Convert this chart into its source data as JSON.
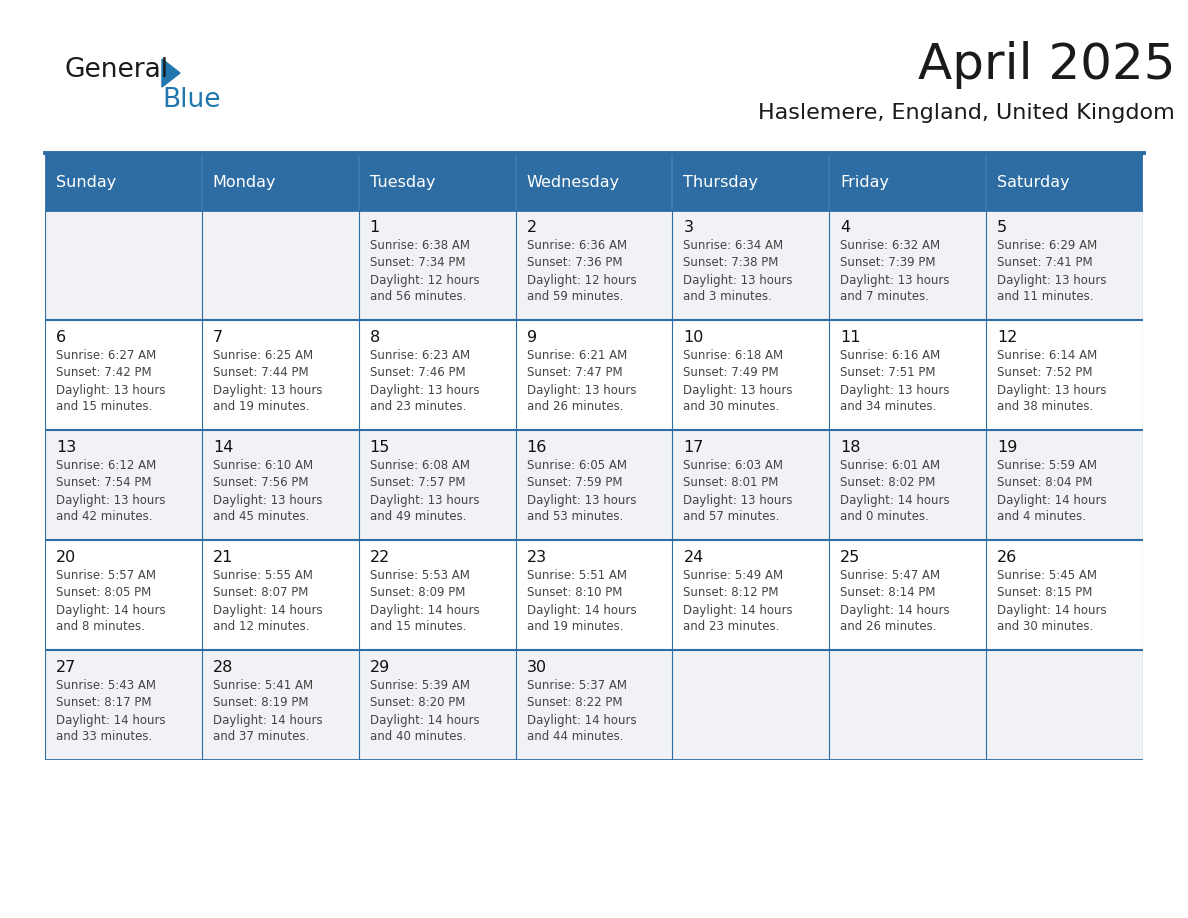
{
  "title": "April 2025",
  "subtitle": "Haslemere, England, United Kingdom",
  "header_bg": "#2e6da4",
  "header_text": "#ffffff",
  "row_bg_odd": "#f0f2f5",
  "row_bg_even": "#ffffff",
  "day_headers": [
    "Sunday",
    "Monday",
    "Tuesday",
    "Wednesday",
    "Thursday",
    "Friday",
    "Saturday"
  ],
  "title_color": "#1a1a1a",
  "subtitle_color": "#1a1a1a",
  "cell_text_color": "#444444",
  "day_num_color": "#111111",
  "line_color": "#2e6da4",
  "calendar": [
    [
      {
        "day": "",
        "sunrise": "",
        "sunset": "",
        "daylight": ""
      },
      {
        "day": "",
        "sunrise": "",
        "sunset": "",
        "daylight": ""
      },
      {
        "day": "1",
        "sunrise": "6:38 AM",
        "sunset": "7:34 PM",
        "daylight": "12 hours\nand 56 minutes."
      },
      {
        "day": "2",
        "sunrise": "6:36 AM",
        "sunset": "7:36 PM",
        "daylight": "12 hours\nand 59 minutes."
      },
      {
        "day": "3",
        "sunrise": "6:34 AM",
        "sunset": "7:38 PM",
        "daylight": "13 hours\nand 3 minutes."
      },
      {
        "day": "4",
        "sunrise": "6:32 AM",
        "sunset": "7:39 PM",
        "daylight": "13 hours\nand 7 minutes."
      },
      {
        "day": "5",
        "sunrise": "6:29 AM",
        "sunset": "7:41 PM",
        "daylight": "13 hours\nand 11 minutes."
      }
    ],
    [
      {
        "day": "6",
        "sunrise": "6:27 AM",
        "sunset": "7:42 PM",
        "daylight": "13 hours\nand 15 minutes."
      },
      {
        "day": "7",
        "sunrise": "6:25 AM",
        "sunset": "7:44 PM",
        "daylight": "13 hours\nand 19 minutes."
      },
      {
        "day": "8",
        "sunrise": "6:23 AM",
        "sunset": "7:46 PM",
        "daylight": "13 hours\nand 23 minutes."
      },
      {
        "day": "9",
        "sunrise": "6:21 AM",
        "sunset": "7:47 PM",
        "daylight": "13 hours\nand 26 minutes."
      },
      {
        "day": "10",
        "sunrise": "6:18 AM",
        "sunset": "7:49 PM",
        "daylight": "13 hours\nand 30 minutes."
      },
      {
        "day": "11",
        "sunrise": "6:16 AM",
        "sunset": "7:51 PM",
        "daylight": "13 hours\nand 34 minutes."
      },
      {
        "day": "12",
        "sunrise": "6:14 AM",
        "sunset": "7:52 PM",
        "daylight": "13 hours\nand 38 minutes."
      }
    ],
    [
      {
        "day": "13",
        "sunrise": "6:12 AM",
        "sunset": "7:54 PM",
        "daylight": "13 hours\nand 42 minutes."
      },
      {
        "day": "14",
        "sunrise": "6:10 AM",
        "sunset": "7:56 PM",
        "daylight": "13 hours\nand 45 minutes."
      },
      {
        "day": "15",
        "sunrise": "6:08 AM",
        "sunset": "7:57 PM",
        "daylight": "13 hours\nand 49 minutes."
      },
      {
        "day": "16",
        "sunrise": "6:05 AM",
        "sunset": "7:59 PM",
        "daylight": "13 hours\nand 53 minutes."
      },
      {
        "day": "17",
        "sunrise": "6:03 AM",
        "sunset": "8:01 PM",
        "daylight": "13 hours\nand 57 minutes."
      },
      {
        "day": "18",
        "sunrise": "6:01 AM",
        "sunset": "8:02 PM",
        "daylight": "14 hours\nand 0 minutes."
      },
      {
        "day": "19",
        "sunrise": "5:59 AM",
        "sunset": "8:04 PM",
        "daylight": "14 hours\nand 4 minutes."
      }
    ],
    [
      {
        "day": "20",
        "sunrise": "5:57 AM",
        "sunset": "8:05 PM",
        "daylight": "14 hours\nand 8 minutes."
      },
      {
        "day": "21",
        "sunrise": "5:55 AM",
        "sunset": "8:07 PM",
        "daylight": "14 hours\nand 12 minutes."
      },
      {
        "day": "22",
        "sunrise": "5:53 AM",
        "sunset": "8:09 PM",
        "daylight": "14 hours\nand 15 minutes."
      },
      {
        "day": "23",
        "sunrise": "5:51 AM",
        "sunset": "8:10 PM",
        "daylight": "14 hours\nand 19 minutes."
      },
      {
        "day": "24",
        "sunrise": "5:49 AM",
        "sunset": "8:12 PM",
        "daylight": "14 hours\nand 23 minutes."
      },
      {
        "day": "25",
        "sunrise": "5:47 AM",
        "sunset": "8:14 PM",
        "daylight": "14 hours\nand 26 minutes."
      },
      {
        "day": "26",
        "sunrise": "5:45 AM",
        "sunset": "8:15 PM",
        "daylight": "14 hours\nand 30 minutes."
      }
    ],
    [
      {
        "day": "27",
        "sunrise": "5:43 AM",
        "sunset": "8:17 PM",
        "daylight": "14 hours\nand 33 minutes."
      },
      {
        "day": "28",
        "sunrise": "5:41 AM",
        "sunset": "8:19 PM",
        "daylight": "14 hours\nand 37 minutes."
      },
      {
        "day": "29",
        "sunrise": "5:39 AM",
        "sunset": "8:20 PM",
        "daylight": "14 hours\nand 40 minutes."
      },
      {
        "day": "30",
        "sunrise": "5:37 AM",
        "sunset": "8:22 PM",
        "daylight": "14 hours\nand 44 minutes."
      },
      {
        "day": "",
        "sunrise": "",
        "sunset": "",
        "daylight": ""
      },
      {
        "day": "",
        "sunrise": "",
        "sunset": "",
        "daylight": ""
      },
      {
        "day": "",
        "sunrise": "",
        "sunset": "",
        "daylight": ""
      }
    ]
  ],
  "logo_text1": "General",
  "logo_text2": "Blue",
  "logo_color1": "#1a1a1a",
  "logo_color2": "#2176ae",
  "logo_triangle_color": "#2176ae"
}
